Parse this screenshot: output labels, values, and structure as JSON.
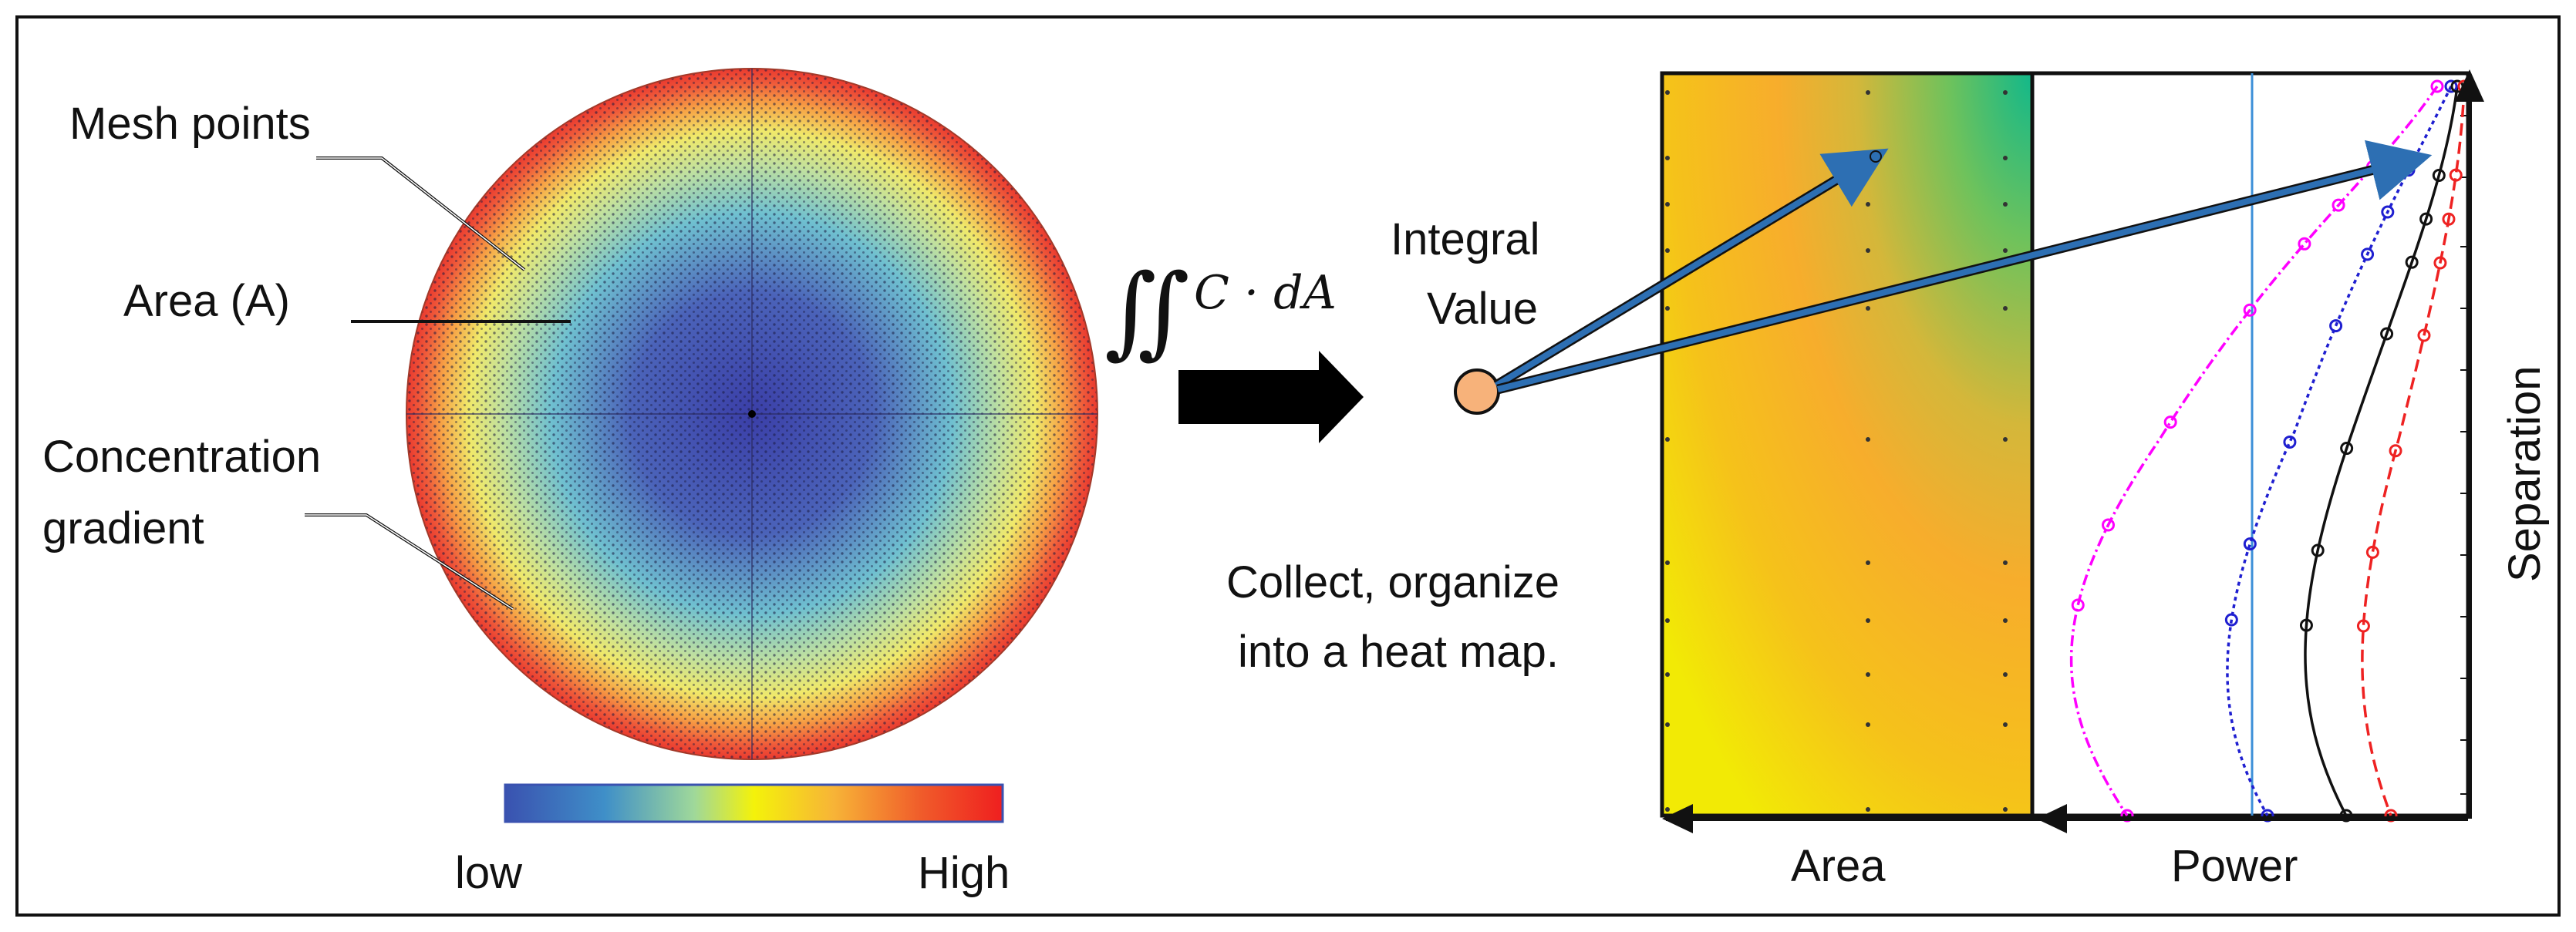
{
  "circle_labels": {
    "mesh_points": "Mesh points",
    "area": "Area (A)",
    "concentration_line1": "Concentration",
    "concentration_line2": "gradient"
  },
  "colorbar": {
    "low": "low",
    "high": "High",
    "colors": [
      "#3a52b0",
      "#3f8fc8",
      "#9fd89a",
      "#f4f20a",
      "#f7b437",
      "#f05a2a",
      "#ef1f1f"
    ]
  },
  "formula": {
    "integral_symbol": "∬",
    "expression": "C · dA"
  },
  "integral_value": {
    "line1": "Integral",
    "line2": "Value",
    "dot_color": "#f7b27a"
  },
  "collect_text": {
    "line1": "Collect, organize",
    "line2": "into a heat map."
  },
  "axes": {
    "heatmap_xlabel": "Area",
    "power_xlabel": "Power",
    "ylabel": "Separation"
  },
  "series_colors": {
    "magenta": "#ff00ff",
    "blue": "#1f1fd0",
    "black": "#111111",
    "red": "#ee2222",
    "ref_line": "#3c8fd8",
    "arrow": "#2d6fb3"
  }
}
